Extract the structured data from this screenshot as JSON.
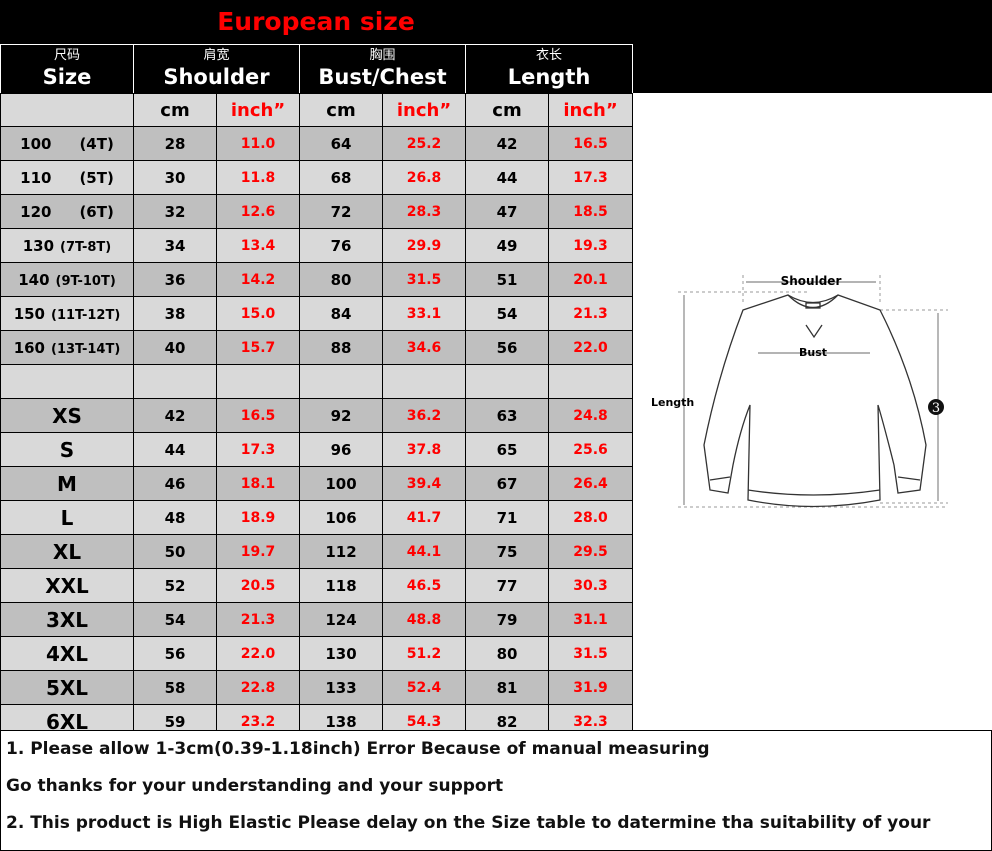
{
  "title": "European size",
  "headers": [
    {
      "zh": "尺码",
      "en": "Size"
    },
    {
      "zh": "肩宽",
      "en": "Shoulder"
    },
    {
      "zh": "胸围",
      "en": "Bust/Chest"
    },
    {
      "zh": "衣长",
      "en": "Length"
    }
  ],
  "units": {
    "cm": "cm",
    "inch": "inch”"
  },
  "rows": [
    {
      "size": "100",
      "alt": "(4T)",
      "s_cm": "28",
      "s_in": "11.0",
      "b_cm": "64",
      "b_in": "25.2",
      "l_cm": "42",
      "l_in": "16.5"
    },
    {
      "size": "110",
      "alt": "(5T)",
      "s_cm": "30",
      "s_in": "11.8",
      "b_cm": "68",
      "b_in": "26.8",
      "l_cm": "44",
      "l_in": "17.3"
    },
    {
      "size": "120",
      "alt": "(6T)",
      "s_cm": "32",
      "s_in": "12.6",
      "b_cm": "72",
      "b_in": "28.3",
      "l_cm": "47",
      "l_in": "18.5"
    },
    {
      "size": "130",
      "alt": "(7T-8T)",
      "s_cm": "34",
      "s_in": "13.4",
      "b_cm": "76",
      "b_in": "29.9",
      "l_cm": "49",
      "l_in": "19.3"
    },
    {
      "size": "140",
      "alt": "(9T-10T)",
      "s_cm": "36",
      "s_in": "14.2",
      "b_cm": "80",
      "b_in": "31.5",
      "l_cm": "51",
      "l_in": "20.1"
    },
    {
      "size": "150",
      "alt": "(11T-12T)",
      "s_cm": "38",
      "s_in": "15.0",
      "b_cm": "84",
      "b_in": "33.1",
      "l_cm": "54",
      "l_in": "21.3"
    },
    {
      "size": "160",
      "alt": "(13T-14T)",
      "s_cm": "40",
      "s_in": "15.7",
      "b_cm": "88",
      "b_in": "34.6",
      "l_cm": "56",
      "l_in": "22.0"
    },
    {
      "size": "",
      "alt": "",
      "s_cm": "",
      "s_in": "",
      "b_cm": "",
      "b_in": "",
      "l_cm": "",
      "l_in": ""
    },
    {
      "size": "XS",
      "s_cm": "42",
      "s_in": "16.5",
      "b_cm": "92",
      "b_in": "36.2",
      "l_cm": "63",
      "l_in": "24.8"
    },
    {
      "size": "S",
      "s_cm": "44",
      "s_in": "17.3",
      "b_cm": "96",
      "b_in": "37.8",
      "l_cm": "65",
      "l_in": "25.6"
    },
    {
      "size": "M",
      "s_cm": "46",
      "s_in": "18.1",
      "b_cm": "100",
      "b_in": "39.4",
      "l_cm": "67",
      "l_in": "26.4"
    },
    {
      "size": "L",
      "s_cm": "48",
      "s_in": "18.9",
      "b_cm": "106",
      "b_in": "41.7",
      "l_cm": "71",
      "l_in": "28.0"
    },
    {
      "size": "XL",
      "s_cm": "50",
      "s_in": "19.7",
      "b_cm": "112",
      "b_in": "44.1",
      "l_cm": "75",
      "l_in": "29.5"
    },
    {
      "size": "XXL",
      "s_cm": "52",
      "s_in": "20.5",
      "b_cm": "118",
      "b_in": "46.5",
      "l_cm": "77",
      "l_in": "30.3"
    },
    {
      "size": "3XL",
      "s_cm": "54",
      "s_in": "21.3",
      "b_cm": "124",
      "b_in": "48.8",
      "l_cm": "79",
      "l_in": "31.1"
    },
    {
      "size": "4XL",
      "s_cm": "56",
      "s_in": "22.0",
      "b_cm": "130",
      "b_in": "51.2",
      "l_cm": "80",
      "l_in": "31.5"
    },
    {
      "size": "5XL",
      "s_cm": "58",
      "s_in": "22.8",
      "b_cm": "133",
      "b_in": "52.4",
      "l_cm": "81",
      "l_in": "31.9"
    },
    {
      "size": "6XL",
      "s_cm": "59",
      "s_in": "23.2",
      "b_cm": "138",
      "b_in": "54.3",
      "l_cm": "82",
      "l_in": "32.3"
    }
  ],
  "diagram": {
    "shoulder": "Shoulder",
    "bust": "Bust",
    "length": "Length",
    "marker": "3"
  },
  "notes": [
    "1. Please allow 1-3cm(0.39-1.18inch) Error Because of manual measuring",
    "Go thanks for your understanding and your support",
    "2. This product is High Elastic  Please delay on the Size table to datermine tha suitability of your"
  ],
  "colors": {
    "accent": "#ff0000",
    "header_bg": "#000000",
    "row_dark": "#bfbfbf",
    "row_light": "#d9d9d9"
  }
}
